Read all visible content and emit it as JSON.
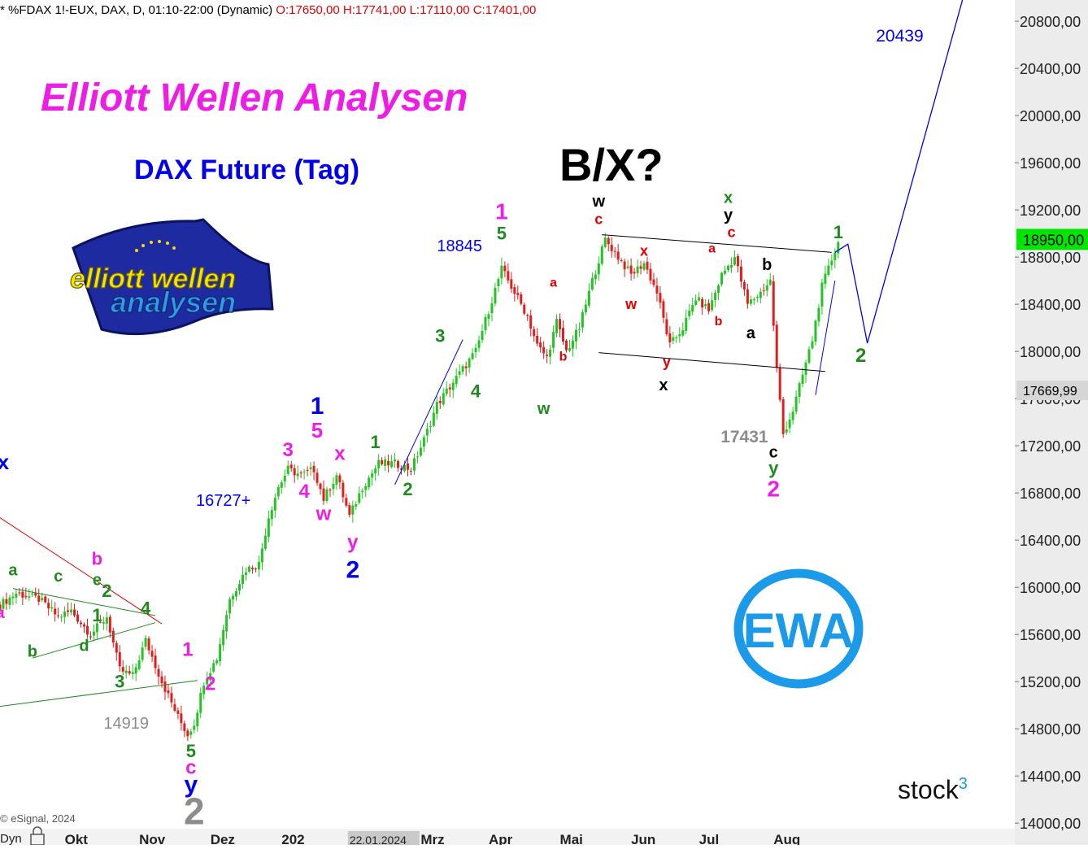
{
  "header": {
    "symbol_info": "* %FDAX 1!-EUX, DAX, D, 01:10-22:00 (Dynamic)",
    "ohlc": "O:17650,00 H:17741,00 L:17110,00 C:17401,00"
  },
  "titles": {
    "main": "Elliott Wellen Analysen",
    "sub": "DAX Future (Tag)",
    "scenario": "B/X?"
  },
  "logos": {
    "ewa_line1": "elliott wellen",
    "ewa_line2": "analysen",
    "badge": "EWA",
    "brand": "stock",
    "brand_sup": "3"
  },
  "footer": {
    "copyright": "© eSignal, 2024",
    "left_cut": "Dyn"
  },
  "colors": {
    "magenta": "#ee1de6",
    "blue": "#0000ee",
    "green": "#1f8a1f",
    "red": "#e00000",
    "black": "#000000",
    "gray": "#8c8c8c",
    "up_candle": "#22c522",
    "down_candle": "#e21d1d",
    "badge": "#1a9ae8",
    "price_tag": "#00e600",
    "axis_bg": "#ececec"
  },
  "chart_data": {
    "type": "candlestick",
    "y_axis": {
      "range": [
        13960,
        20980
      ],
      "ticks": [
        "20800,00",
        "20400,00",
        "20000,00",
        "19600,00",
        "19200,00",
        "18800,00",
        "18400,00",
        "18000,00",
        "17600,00",
        "17200,00",
        "16800,00",
        "16400,00",
        "16000,00",
        "15600,00",
        "15200,00",
        "14800,00",
        "14400,00",
        "14000,00"
      ],
      "tick_values": [
        20800,
        20400,
        20000,
        19600,
        19200,
        18800,
        18400,
        18000,
        17600,
        17200,
        16800,
        16400,
        16000,
        15600,
        15200,
        14800,
        14400,
        14000
      ],
      "last_price": "18950,00",
      "last_price_value": 18950,
      "ref_price": "17669,99",
      "ref_price_value": 17670
    },
    "x_axis": {
      "labels": [
        "Okt",
        "Nov",
        "Dez",
        "202",
        "22.01.2024",
        "Mrz",
        "Apr",
        "Mai",
        "Jun",
        "Jul",
        "Aug"
      ],
      "trading_days_from_chart_start": [
        20,
        43,
        65,
        87,
        108,
        130,
        151,
        173,
        195,
        216,
        239
      ]
    },
    "key_levels": [
      {
        "label": "20439",
        "value": 20439
      },
      {
        "label": "18845",
        "value": 18845
      },
      {
        "label": "16727+",
        "value": 16727
      },
      {
        "label": "17431",
        "value": 17431
      },
      {
        "label": "14919",
        "value": 14919
      }
    ],
    "wave_labels": [
      {
        "t": "1",
        "c": "magenta",
        "d": 155,
        "v": 19120,
        "s": 28
      },
      {
        "t": "5",
        "c": "green",
        "d": 155,
        "v": 18950,
        "s": 22
      },
      {
        "t": "w",
        "c": "black",
        "d": 185,
        "v": 19230,
        "s": 20
      },
      {
        "t": "c",
        "c": "red",
        "d": 185,
        "v": 19080,
        "s": 18
      },
      {
        "t": "x",
        "c": "green",
        "d": 225,
        "v": 19260,
        "s": 20
      },
      {
        "t": "y",
        "c": "black",
        "d": 225,
        "v": 19110,
        "s": 20
      },
      {
        "t": "c",
        "c": "red",
        "d": 226,
        "v": 18970,
        "s": 18
      },
      {
        "t": "a",
        "c": "red",
        "d": 220,
        "v": 18840,
        "s": 16
      },
      {
        "t": "x",
        "c": "red",
        "d": 199,
        "v": 18810,
        "s": 18
      },
      {
        "t": "b",
        "c": "black",
        "d": 237,
        "v": 18690,
        "s": 20
      },
      {
        "t": "a",
        "c": "red",
        "d": 171,
        "v": 18550,
        "s": 16
      },
      {
        "t": "w",
        "c": "red",
        "d": 195,
        "v": 18360,
        "s": 18
      },
      {
        "t": "b",
        "c": "red",
        "d": 222,
        "v": 18220,
        "s": 16
      },
      {
        "t": "a",
        "c": "black",
        "d": 232,
        "v": 18110,
        "s": 20
      },
      {
        "t": "b",
        "c": "red",
        "d": 174,
        "v": 17920,
        "s": 16
      },
      {
        "t": "y",
        "c": "red",
        "d": 206,
        "v": 17870,
        "s": 18
      },
      {
        "t": "x",
        "c": "black",
        "d": 205,
        "v": 17670,
        "s": 20
      },
      {
        "t": "w",
        "c": "green",
        "d": 168,
        "v": 17470,
        "s": 20
      },
      {
        "t": "3",
        "c": "green",
        "d": 136,
        "v": 18080,
        "s": 22
      },
      {
        "t": "4",
        "c": "green",
        "d": 147,
        "v": 17610,
        "s": 22
      },
      {
        "t": "1",
        "c": "green",
        "d": 116,
        "v": 17180,
        "s": 22
      },
      {
        "t": "2",
        "c": "green",
        "d": 126,
        "v": 16780,
        "s": 22
      },
      {
        "t": "1",
        "c": "blue",
        "d": 98,
        "v": 17470,
        "s": 30
      },
      {
        "t": "5",
        "c": "magenta",
        "d": 98,
        "v": 17270,
        "s": 26
      },
      {
        "t": "3",
        "c": "magenta",
        "d": 89,
        "v": 17110,
        "s": 24
      },
      {
        "t": "x",
        "c": "magenta",
        "d": 105,
        "v": 17080,
        "s": 24
      },
      {
        "t": "4",
        "c": "magenta",
        "d": 94,
        "v": 16760,
        "s": 24
      },
      {
        "t": "w",
        "c": "magenta",
        "d": 100,
        "v": 16570,
        "s": 24
      },
      {
        "t": "y",
        "c": "magenta",
        "d": 109,
        "v": 16330,
        "s": 24
      },
      {
        "t": "2",
        "c": "blue",
        "d": 109,
        "v": 16080,
        "s": 30
      },
      {
        "t": "b",
        "c": "magenta",
        "d": 30,
        "v": 16190,
        "s": 22
      },
      {
        "t": "a",
        "c": "green",
        "d": 4,
        "v": 16100,
        "s": 20
      },
      {
        "t": "c",
        "c": "green",
        "d": 18,
        "v": 16050,
        "s": 20
      },
      {
        "t": "e",
        "c": "green",
        "d": 30,
        "v": 16020,
        "s": 20
      },
      {
        "t": "2",
        "c": "green",
        "d": 33,
        "v": 15920,
        "s": 22
      },
      {
        "t": "1",
        "c": "green",
        "d": 30,
        "v": 15710,
        "s": 22
      },
      {
        "t": "4",
        "c": "green",
        "d": 45,
        "v": 15770,
        "s": 22
      },
      {
        "t": "d",
        "c": "green",
        "d": 26,
        "v": 15460,
        "s": 20
      },
      {
        "t": "b",
        "c": "green",
        "d": 10,
        "v": 15410,
        "s": 20
      },
      {
        "t": "3",
        "c": "green",
        "d": 37,
        "v": 15150,
        "s": 22
      },
      {
        "t": "1",
        "c": "magenta",
        "d": 58,
        "v": 15420,
        "s": 24
      },
      {
        "t": "2",
        "c": "magenta",
        "d": 65,
        "v": 15130,
        "s": 24
      },
      {
        "t": "5",
        "c": "green",
        "d": 59,
        "v": 14560,
        "s": 22
      },
      {
        "t": "c",
        "c": "magenta",
        "d": 59,
        "v": 14420,
        "s": 24
      },
      {
        "t": "y",
        "c": "blue",
        "d": 59,
        "v": 14260,
        "s": 30
      },
      {
        "t": "2",
        "c": "gray",
        "d": 60,
        "v": 13990,
        "s": 46
      },
      {
        "t": "c",
        "c": "black",
        "d": 239,
        "v": 17100,
        "s": 20
      },
      {
        "t": "y",
        "c": "green",
        "d": 239,
        "v": 16960,
        "s": 22
      },
      {
        "t": "2",
        "c": "magenta",
        "d": 239,
        "v": 16770,
        "s": 28
      },
      {
        "t": "1",
        "c": "green",
        "d": 259,
        "v": 18960,
        "s": 22
      },
      {
        "t": "2",
        "c": "green",
        "d": 266,
        "v": 17910,
        "s": 24
      },
      {
        "t": "x",
        "c": "blue",
        "d": 1,
        "v": 17000,
        "s": 26
      },
      {
        "t": "a",
        "c": "magenta",
        "d": 0,
        "v": 15740,
        "s": 20
      }
    ],
    "trend_lines": [
      {
        "c": "black",
        "from": [
          186,
          18990
        ],
        "to": [
          257,
          18840
        ]
      },
      {
        "c": "black",
        "from": [
          185,
          17990
        ],
        "to": [
          255,
          17830
        ]
      },
      {
        "c": "blue",
        "from": [
          122,
          16870
        ],
        "to": [
          143,
          18100
        ]
      },
      {
        "c": "red",
        "from": [
          0,
          16590
        ],
        "to": [
          50,
          15690
        ]
      },
      {
        "c": "green",
        "from": [
          4,
          15990
        ],
        "to": [
          48,
          15760
        ]
      },
      {
        "c": "green",
        "from": [
          10,
          15400
        ],
        "to": [
          48,
          15700
        ]
      },
      {
        "c": "green",
        "from": [
          0,
          14990
        ],
        "to": [
          61,
          15210
        ]
      },
      {
        "c": "blue",
        "from": [
          252,
          17630
        ],
        "to": [
          258,
          18600
        ]
      }
    ],
    "forecast_path": [
      [
        258,
        18840
      ],
      [
        262,
        18910
      ],
      [
        268,
        18070
      ],
      [
        298,
        21040
      ]
    ]
  }
}
